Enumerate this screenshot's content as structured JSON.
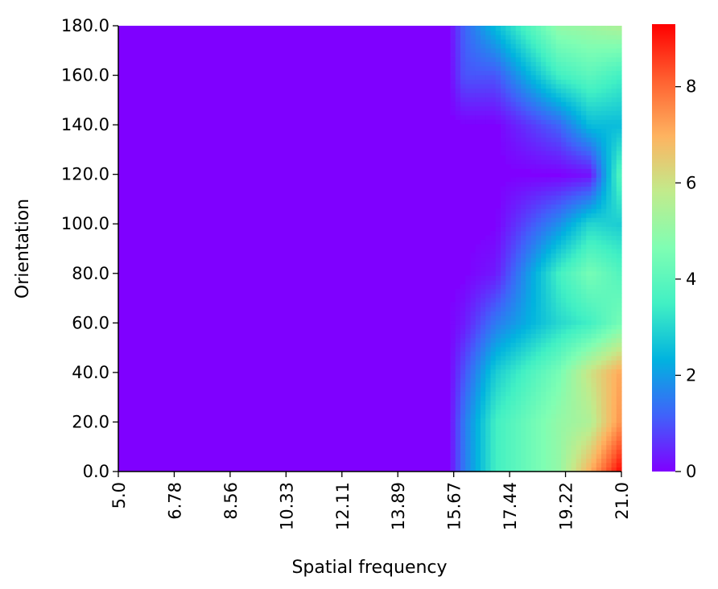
{
  "chart_data": {
    "type": "heatmap",
    "title": "",
    "xlabel": "Spatial frequency",
    "ylabel": "Orientation",
    "x_tick_labels": [
      "5.0",
      "6.78",
      "8.56",
      "10.33",
      "12.11",
      "13.89",
      "15.67",
      "17.44",
      "19.22",
      "21.0"
    ],
    "y_tick_labels": [
      "0.0",
      "20.0",
      "40.0",
      "60.0",
      "80.0",
      "100.0",
      "120.0",
      "140.0",
      "160.0",
      "180.0"
    ],
    "xlim": [
      5.0,
      21.0
    ],
    "ylim": [
      0.0,
      180.0
    ],
    "colorbar": {
      "range": [
        0,
        9.3
      ],
      "ticks": [
        0,
        2,
        4,
        6,
        8
      ],
      "tick_labels": [
        "0",
        "2",
        "4",
        "6",
        "8"
      ],
      "colormap": "rainbow",
      "stops": [
        "#7f00ff",
        "#4062fa",
        "#01b3df",
        "#41f0c4",
        "#7ffeb3",
        "#c1eb8c",
        "#feb360",
        "#ff6030",
        "#ff0000"
      ]
    },
    "grid": false,
    "legend": "colorbar-right",
    "control_points": [
      {
        "x": 15.5,
        "y": 0,
        "v": 0
      },
      {
        "x": 16.0,
        "y": 0,
        "v": 1.5
      },
      {
        "x": 17.0,
        "y": 0,
        "v": 3.5
      },
      {
        "x": 19.0,
        "y": 0,
        "v": 5.0
      },
      {
        "x": 20.0,
        "y": 0,
        "v": 7.0
      },
      {
        "x": 21.0,
        "y": 0,
        "v": 9.3
      },
      {
        "x": 15.5,
        "y": 20,
        "v": 0
      },
      {
        "x": 16.0,
        "y": 20,
        "v": 1.5
      },
      {
        "x": 17.0,
        "y": 20,
        "v": 3.5
      },
      {
        "x": 19.0,
        "y": 20,
        "v": 5.0
      },
      {
        "x": 20.0,
        "y": 20,
        "v": 5.5
      },
      {
        "x": 21.0,
        "y": 20,
        "v": 7.5
      },
      {
        "x": 15.5,
        "y": 40,
        "v": 0
      },
      {
        "x": 16.0,
        "y": 40,
        "v": 1.0
      },
      {
        "x": 17.0,
        "y": 40,
        "v": 2.8
      },
      {
        "x": 19.0,
        "y": 40,
        "v": 4.5
      },
      {
        "x": 20.0,
        "y": 40,
        "v": 6.0
      },
      {
        "x": 21.0,
        "y": 40,
        "v": 7.2
      },
      {
        "x": 15.5,
        "y": 60,
        "v": 0
      },
      {
        "x": 16.0,
        "y": 60,
        "v": 0.3
      },
      {
        "x": 17.0,
        "y": 60,
        "v": 1.5
      },
      {
        "x": 19.0,
        "y": 60,
        "v": 3.0
      },
      {
        "x": 20.0,
        "y": 60,
        "v": 3.5
      },
      {
        "x": 21.0,
        "y": 60,
        "v": 4.5
      },
      {
        "x": 15.5,
        "y": 80,
        "v": 0
      },
      {
        "x": 16.0,
        "y": 80,
        "v": 0
      },
      {
        "x": 17.0,
        "y": 80,
        "v": 0.3
      },
      {
        "x": 19.0,
        "y": 80,
        "v": 3.5
      },
      {
        "x": 20.0,
        "y": 80,
        "v": 4.5
      },
      {
        "x": 21.0,
        "y": 80,
        "v": 3.8
      },
      {
        "x": 15.5,
        "y": 100,
        "v": 0
      },
      {
        "x": 16.0,
        "y": 100,
        "v": 0
      },
      {
        "x": 17.0,
        "y": 100,
        "v": 0
      },
      {
        "x": 19.0,
        "y": 100,
        "v": 1.8
      },
      {
        "x": 20.0,
        "y": 100,
        "v": 3.0
      },
      {
        "x": 21.0,
        "y": 100,
        "v": 2.8
      },
      {
        "x": 15.5,
        "y": 120,
        "v": 0
      },
      {
        "x": 16.0,
        "y": 120,
        "v": 0
      },
      {
        "x": 17.0,
        "y": 120,
        "v": 0
      },
      {
        "x": 19.0,
        "y": 120,
        "v": 0
      },
      {
        "x": 20.0,
        "y": 120,
        "v": 0.2
      },
      {
        "x": 21.0,
        "y": 120,
        "v": 4.0
      },
      {
        "x": 15.5,
        "y": 140,
        "v": 0
      },
      {
        "x": 16.0,
        "y": 140,
        "v": 0
      },
      {
        "x": 17.0,
        "y": 140,
        "v": 0
      },
      {
        "x": 19.0,
        "y": 140,
        "v": 1.2
      },
      {
        "x": 20.0,
        "y": 140,
        "v": 2.5
      },
      {
        "x": 21.0,
        "y": 140,
        "v": 2.5
      },
      {
        "x": 15.5,
        "y": 160,
        "v": 0
      },
      {
        "x": 16.0,
        "y": 160,
        "v": 1.0
      },
      {
        "x": 17.0,
        "y": 160,
        "v": 1.0
      },
      {
        "x": 19.0,
        "y": 160,
        "v": 3.5
      },
      {
        "x": 20.0,
        "y": 160,
        "v": 4.0
      },
      {
        "x": 21.0,
        "y": 160,
        "v": 3.5
      },
      {
        "x": 15.5,
        "y": 180,
        "v": 0
      },
      {
        "x": 16.0,
        "y": 180,
        "v": 1.2
      },
      {
        "x": 17.0,
        "y": 180,
        "v": 2.5
      },
      {
        "x": 19.0,
        "y": 180,
        "v": 5.0
      },
      {
        "x": 20.0,
        "y": 180,
        "v": 5.2
      },
      {
        "x": 21.0,
        "y": 180,
        "v": 5.5
      }
    ]
  }
}
